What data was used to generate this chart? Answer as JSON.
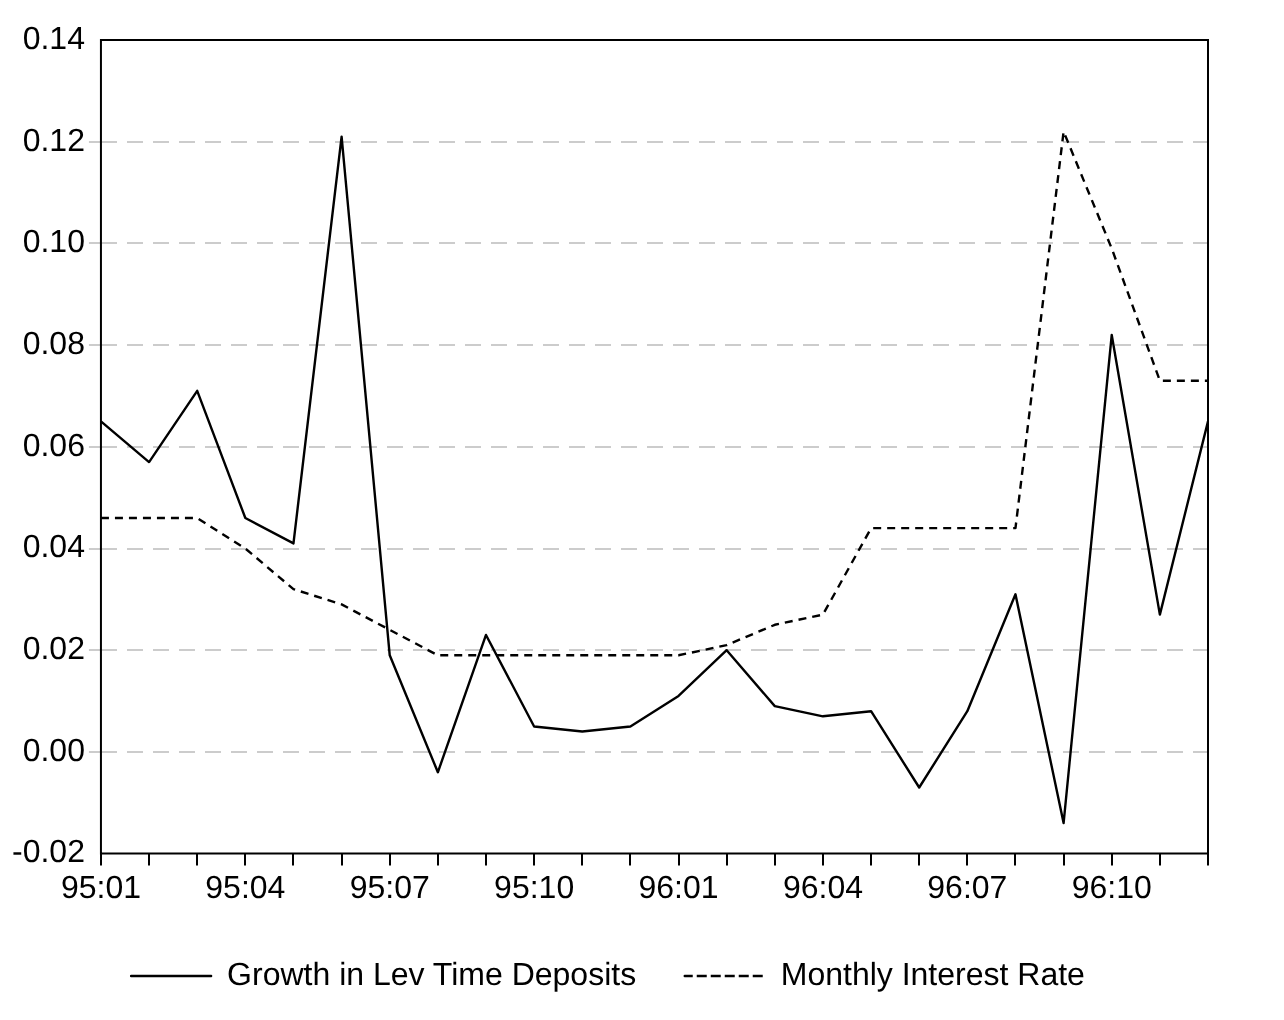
{
  "chart_data": {
    "type": "line",
    "categories": [
      "95:01",
      null,
      null,
      "95:04",
      null,
      null,
      "95:07",
      null,
      null,
      "95:10",
      null,
      null,
      "96:01",
      null,
      null,
      "96:04",
      null,
      null,
      "96:07",
      null,
      null,
      "96:10",
      null,
      null
    ],
    "series": [
      {
        "name": "Growth in Lev Time Deposits",
        "color": "#000000",
        "line_style": "solid",
        "values": [
          0.065,
          0.057,
          0.071,
          0.046,
          0.041,
          0.121,
          0.019,
          -0.004,
          0.023,
          0.005,
          0.004,
          0.005,
          0.011,
          0.02,
          0.009,
          0.007,
          0.008,
          -0.007,
          0.008,
          0.031,
          -0.014,
          0.082,
          0.027,
          0.065
        ]
      },
      {
        "name": "Monthly Interest Rate",
        "color": "#000000",
        "line_style": "dashed",
        "values": [
          0.046,
          0.046,
          0.046,
          0.04,
          0.032,
          0.029,
          0.024,
          0.019,
          0.019,
          0.019,
          0.019,
          0.019,
          0.019,
          0.021,
          0.025,
          0.027,
          0.044,
          0.044,
          0.044,
          0.044,
          0.122,
          0.099,
          0.073,
          0.073
        ]
      }
    ],
    "ylim": [
      -0.02,
      0.14
    ],
    "yticks": [
      {
        "value": -0.02,
        "label": "-0.02"
      },
      {
        "value": 0,
        "label": "0.00"
      },
      {
        "value": 0.02,
        "label": "0.02"
      },
      {
        "value": 0.04,
        "label": "0.04"
      },
      {
        "value": 0.06,
        "label": "0.06"
      },
      {
        "value": 0.08,
        "label": "0.08"
      },
      {
        "value": 0.1,
        "label": "0.10"
      },
      {
        "value": 0.12,
        "label": "0.12"
      },
      {
        "value": 0.14,
        "label": "0.14"
      }
    ],
    "grid": "y",
    "legend": "bottom",
    "marker": "none"
  }
}
